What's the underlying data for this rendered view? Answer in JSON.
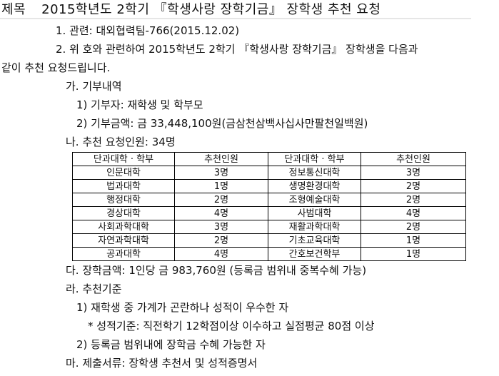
{
  "title": {
    "label": "제목",
    "text": "2015학년도 2학기 『학생사랑 장학기금』 장학생 추천 요청"
  },
  "lines": {
    "ref": "1. 관련: 대외협력팀-766(2015.12.02)",
    "p2a": "2. 위 호와 관련하여 2015학년도 2학기 『학생사랑 장학기금』 장학생을 다음과",
    "p2b": "같이 추천 요청드립니다.",
    "ga": "가. 기부내역",
    "ga1": "1) 기부자: 재학생 및 학부모",
    "ga2": "2) 기부금액: 금 33,448,100원(금삼천삼백사십사만팔천일백원)",
    "na": "나. 추천 요청인원: 34명",
    "da": "다. 장학금액: 1인당 금 983,760원 (등록금 범위내 중복수혜 가능)",
    "ra": "라. 추천기준",
    "ra1": "1) 재학생 중 가계가 곤란하나 성적이 우수한 자",
    "ra1s": "* 성적기준: 직전학기 12학점이상 이수하고 실점평균 80점 이상",
    "ra2": "2) 등록금 범위내에 장학금 수혜 가능한 자",
    "ma": "마. 제출서류: 장학생 추천서 및 성적증명서"
  },
  "table": {
    "headers": [
      "단과대학 · 학부",
      "추천인원",
      "단과대학 · 학부",
      "추천인원"
    ],
    "rows": [
      [
        "인문대학",
        "3명",
        "정보통신대학",
        "3명"
      ],
      [
        "법과대학",
        "1명",
        "생명환경대학",
        "2명"
      ],
      [
        "행정대학",
        "2명",
        "조형예술대학",
        "2명"
      ],
      [
        "경상대학",
        "4명",
        "사범대학",
        "4명"
      ],
      [
        "사회과학대학",
        "3명",
        "재활과학대학",
        "2명"
      ],
      [
        "자연과학대학",
        "2명",
        "기초교육대학",
        "1명"
      ],
      [
        "공과대학",
        "4명",
        "간호보건학부",
        "1명"
      ]
    ]
  }
}
